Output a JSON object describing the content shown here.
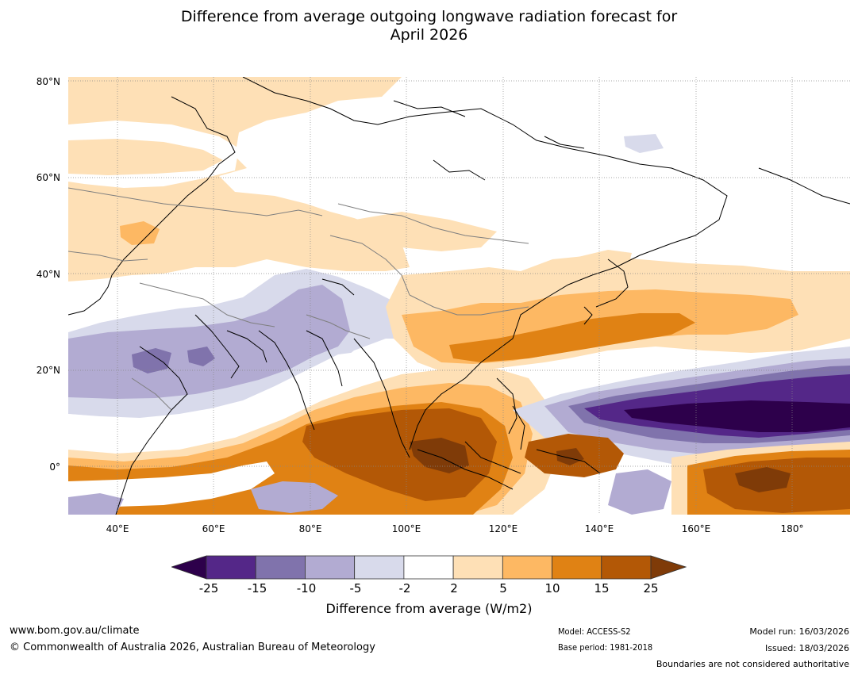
{
  "title": {
    "line1": "Difference from average outgoing longwave radiation forecast for",
    "line2": "April 2026"
  },
  "map": {
    "lat_labels": [
      "80°N",
      "60°N",
      "40°N",
      "20°N",
      "0°"
    ],
    "lon_labels": [
      "40°E",
      "60°E",
      "80°E",
      "100°E",
      "120°E",
      "140°E",
      "160°E",
      "180°"
    ]
  },
  "colorbar": {
    "ticks": [
      "-25",
      "-15",
      "-10",
      "-5",
      "-2",
      "2",
      "5",
      "10",
      "15",
      "25"
    ],
    "colors": [
      "#2d004b",
      "#542788",
      "#8073ac",
      "#b2abd2",
      "#d8daeb",
      "#ffffff",
      "#fee0b6",
      "#fdb863",
      "#e08214",
      "#b35806",
      "#7f3b08"
    ],
    "label": "Difference from average (W/m2)"
  },
  "footer": {
    "url": "www.bom.gov.au/climate",
    "copyright": "© Commonwealth of Australia 2026, Australian Bureau of Meteorology",
    "model": "Model: ACCESS-S2",
    "base_period": "Base period: 1981-2018",
    "model_run": "Model run: 16/03/2026",
    "issued": "Issued: 18/03/2026",
    "disclaimer": "Boundaries are not considered authoritative"
  }
}
